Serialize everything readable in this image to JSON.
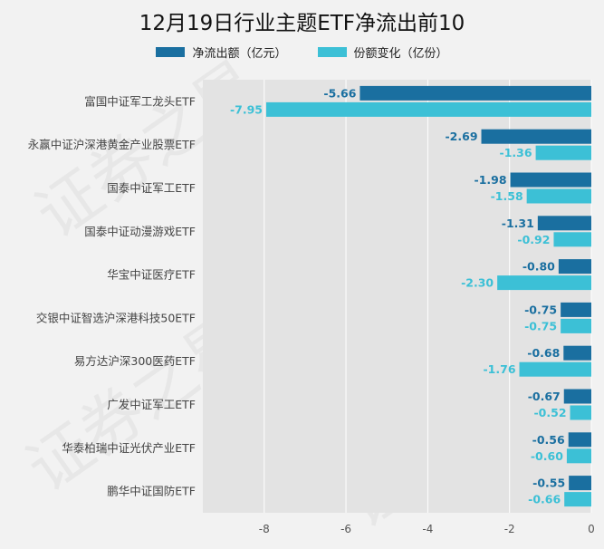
{
  "chart_data": {
    "type": "bar",
    "title": "12月19日行业主题ETF净流出前10",
    "categories": [
      "富国中证军工龙头ETF",
      "永赢中证沪深港黄金产业股票ETF",
      "国泰中证军工ETF",
      "国泰中证动漫游戏ETF",
      "华宝中证医疗ETF",
      "交银中证智选沪深港科技50ETF",
      "易方达沪深300医药ETF",
      "广发中证军工ETF",
      "华泰柏瑞中证光伏产业ETF",
      "鹏华中证国防ETF"
    ],
    "series": [
      {
        "name": "净流出额（亿元）",
        "color": "#1a6fa0",
        "labels": [
          "-5.66",
          "-2.69",
          "-1.98",
          "-1.31",
          "-0.80",
          "-0.75",
          "-0.68",
          "-0.67",
          "-0.56",
          "-0.55"
        ],
        "values": [
          -5.66,
          -2.69,
          -1.98,
          -1.31,
          -0.8,
          -0.75,
          -0.68,
          -0.67,
          -0.56,
          -0.55
        ]
      },
      {
        "name": "份额变化（亿份）",
        "color": "#3cc0d6",
        "labels": [
          "-7.95",
          "-1.36",
          "-1.58",
          "-0.92",
          "-2.30",
          "-0.75",
          "-1.76",
          "-0.52",
          "-0.60",
          "-0.66"
        ],
        "values": [
          -7.95,
          -1.36,
          -1.58,
          -0.92,
          -2.3,
          -0.75,
          -1.76,
          -0.52,
          -0.6,
          -0.66
        ]
      }
    ],
    "xlim": [
      -9.5,
      0
    ],
    "xticks": [
      -8,
      -6,
      -4,
      -2,
      0
    ],
    "xlabel": "",
    "ylabel": "",
    "legend_position": "top-center",
    "grid": true
  }
}
